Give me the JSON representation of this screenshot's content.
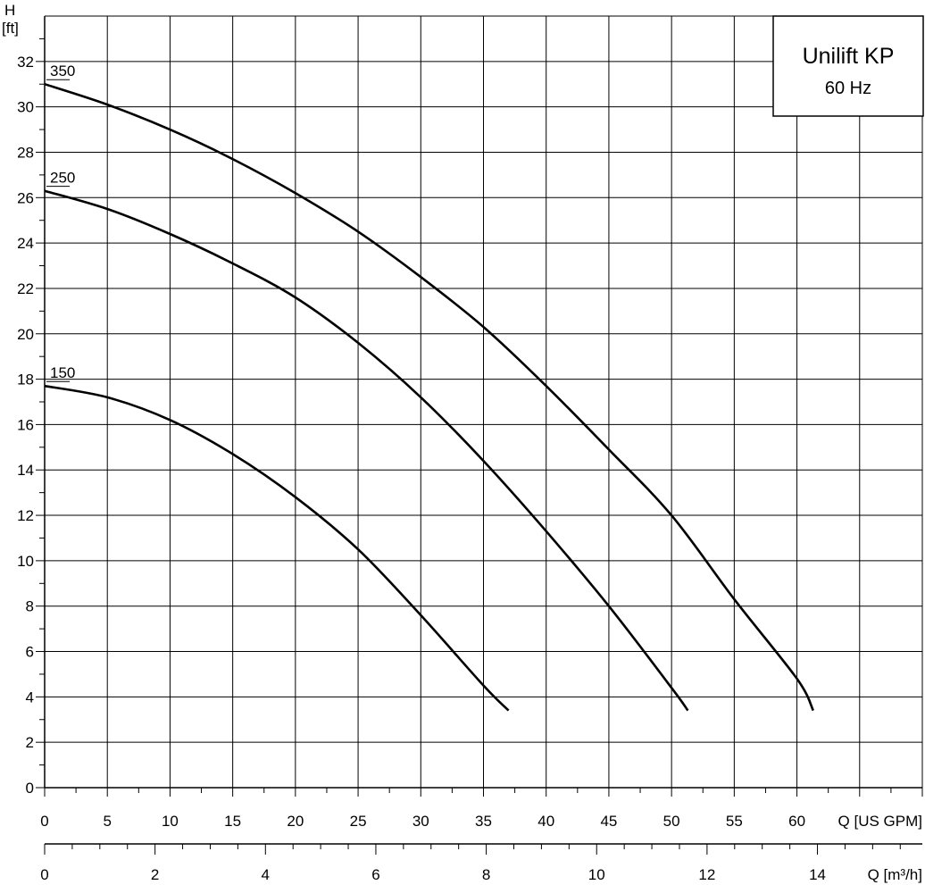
{
  "chart_data": {
    "type": "line",
    "title": "Unilift KP",
    "subtitle": "60 Hz",
    "ylabel_line1": "H",
    "ylabel_line2": "[ft]",
    "xlabel": "Q [US GPM]",
    "x2label": "Q [m³/h]",
    "xlim": [
      0,
      70
    ],
    "ylim": [
      0,
      34
    ],
    "x2lim": [
      0,
      15.9
    ],
    "grid": true,
    "y_ticks": [
      0,
      2,
      4,
      6,
      8,
      10,
      12,
      14,
      16,
      18,
      20,
      22,
      24,
      26,
      28,
      30,
      32
    ],
    "x_ticks": [
      0,
      5,
      10,
      15,
      20,
      25,
      30,
      35,
      40,
      45,
      50,
      55,
      60
    ],
    "x2_ticks": [
      0,
      2,
      4,
      6,
      8,
      10,
      12,
      14
    ],
    "series": [
      {
        "name": "350",
        "x": [
          0,
          5,
          10,
          15,
          20,
          25,
          30,
          35,
          40,
          45,
          50,
          55,
          60,
          61.3
        ],
        "y": [
          31.0,
          30.1,
          29.0,
          27.7,
          26.2,
          24.5,
          22.5,
          20.3,
          17.7,
          14.9,
          12.0,
          8.3,
          4.8,
          3.4
        ]
      },
      {
        "name": "250",
        "x": [
          0,
          5,
          10,
          15,
          20,
          25,
          30,
          35,
          40,
          45,
          50,
          51.3
        ],
        "y": [
          26.3,
          25.5,
          24.4,
          23.1,
          21.6,
          19.6,
          17.2,
          14.4,
          11.3,
          8.0,
          4.4,
          3.4
        ]
      },
      {
        "name": "150",
        "x": [
          0,
          5,
          10,
          15,
          20,
          25,
          30,
          35,
          37
        ],
        "y": [
          17.7,
          17.2,
          16.2,
          14.7,
          12.8,
          10.5,
          7.6,
          4.5,
          3.4
        ]
      }
    ]
  }
}
